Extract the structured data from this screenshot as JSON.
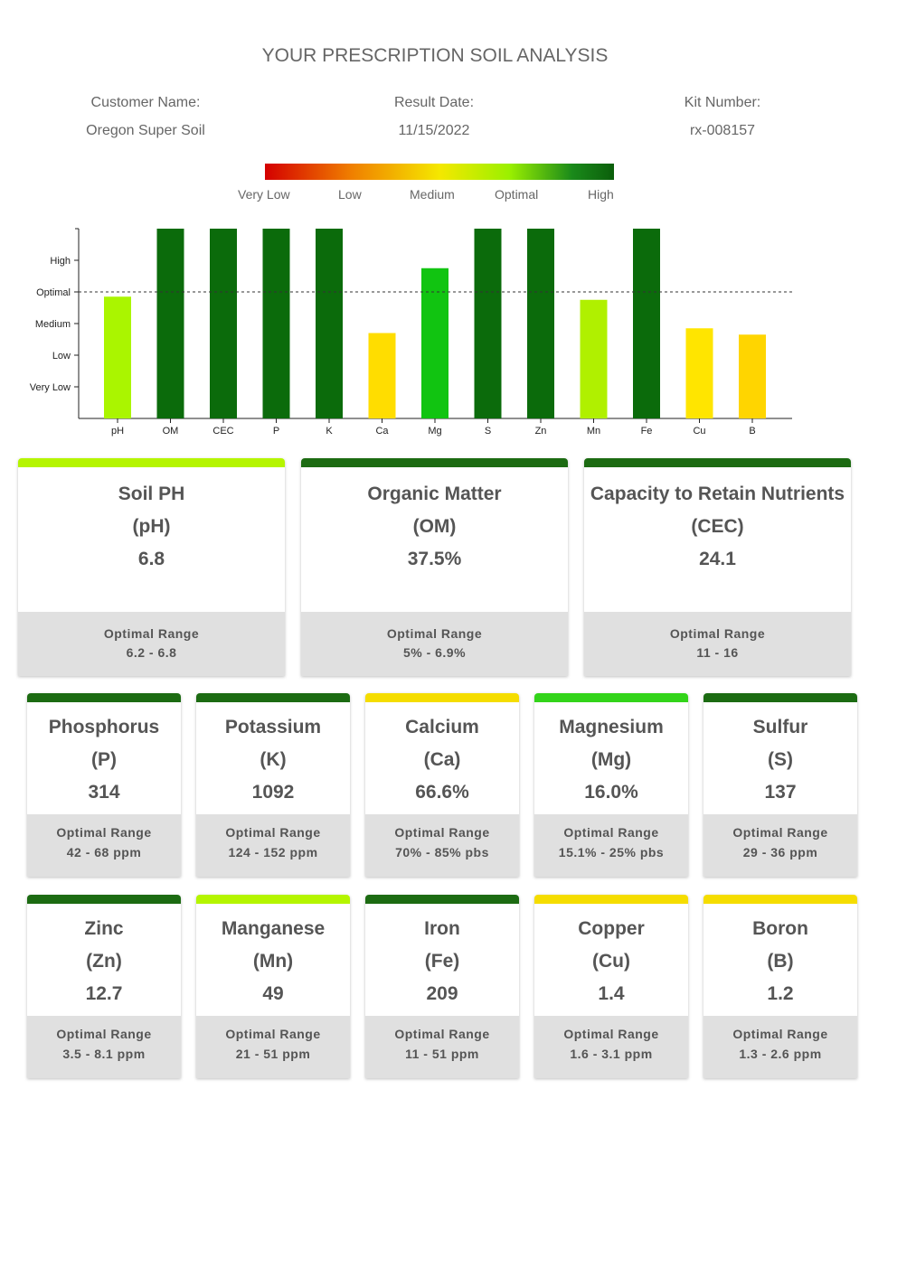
{
  "title": "YOUR PRESCRIPTION SOIL ANALYSIS",
  "meta": {
    "customer_label": "Customer Name:",
    "customer": "Oregon Super Soil",
    "date_label": "Result Date:",
    "date": "11/15/2022",
    "kit_label": "Kit Number:",
    "kit": "rx-008157"
  },
  "legend": [
    "Very Low",
    "Low",
    "Medium",
    "Optimal",
    "High"
  ],
  "chart_data": {
    "type": "bar",
    "categories": [
      "pH",
      "OM",
      "CEC",
      "P",
      "K",
      "Ca",
      "Mg",
      "S",
      "Zn",
      "Mn",
      "Fe",
      "Cu",
      "B"
    ],
    "values": [
      3.85,
      6,
      6,
      6,
      6,
      2.7,
      4.75,
      6,
      6,
      3.75,
      6,
      2.85,
      2.65
    ],
    "colors": [
      "#aaf500",
      "#0b6b0b",
      "#0b6b0b",
      "#0b6b0b",
      "#0b6b0b",
      "#ffdd00",
      "#11c411",
      "#0b6b0b",
      "#0b6b0b",
      "#b0f000",
      "#0b6b0b",
      "#ffe500",
      "#ffd500"
    ],
    "ytick_labels": [
      "Very Low",
      "Low",
      "Medium",
      "Optimal",
      "High"
    ],
    "yticks": [
      1,
      2,
      3,
      4,
      5
    ],
    "ylim": [
      0,
      6
    ],
    "reference_line": {
      "y": 4,
      "style": "dotted"
    },
    "grid": false
  },
  "cards": [
    {
      "name": "Soil PH",
      "sym": "(pH)",
      "val": "6.8",
      "range_label": "Optimal Range",
      "range": "6.2 - 6.8",
      "color": "#b5f500"
    },
    {
      "name": "Organic Matter",
      "sym": "(OM)",
      "val": "37.5%",
      "range_label": "Optimal Range",
      "range": "5% - 6.9%",
      "color": "#1c6b12"
    },
    {
      "name": "Capacity to Retain Nutrients",
      "sym": "(CEC)",
      "val": "24.1",
      "range_label": "Optimal Range",
      "range": "11 - 16",
      "color": "#1c6b12"
    },
    {
      "name": "Phosphorus",
      "sym": "(P)",
      "val": "314",
      "range_label": "Optimal Range",
      "range": "42 - 68 ppm",
      "color": "#1c6b12"
    },
    {
      "name": "Potassium",
      "sym": "(K)",
      "val": "1092",
      "range_label": "Optimal Range",
      "range": "124 - 152 ppm",
      "color": "#1c6b12"
    },
    {
      "name": "Calcium",
      "sym": "(Ca)",
      "val": "66.6%",
      "range_label": "Optimal Range",
      "range": "70% - 85% pbs",
      "color": "#f5dd00"
    },
    {
      "name": "Magnesium",
      "sym": "(Mg)",
      "val": "16.0%",
      "range_label": "Optimal Range",
      "range": "15.1% - 25% pbs",
      "color": "#33d41a"
    },
    {
      "name": "Sulfur",
      "sym": "(S)",
      "val": "137",
      "range_label": "Optimal Range",
      "range": "29 - 36 ppm",
      "color": "#1c6b12"
    },
    {
      "name": "Zinc",
      "sym": "(Zn)",
      "val": "12.7",
      "range_label": "Optimal Range",
      "range": "3.5 - 8.1 ppm",
      "color": "#1c6b12"
    },
    {
      "name": "Manganese",
      "sym": "(Mn)",
      "val": "49",
      "range_label": "Optimal Range",
      "range": "21 - 51 ppm",
      "color": "#b5f500"
    },
    {
      "name": "Iron",
      "sym": "(Fe)",
      "val": "209",
      "range_label": "Optimal Range",
      "range": "11 - 51 ppm",
      "color": "#1c6b12"
    },
    {
      "name": "Copper",
      "sym": "(Cu)",
      "val": "1.4",
      "range_label": "Optimal Range",
      "range": "1.6 - 3.1 ppm",
      "color": "#f5dd00"
    },
    {
      "name": "Boron",
      "sym": "(B)",
      "val": "1.2",
      "range_label": "Optimal Range",
      "range": "1.3 - 2.6 ppm",
      "color": "#f5dd00"
    }
  ]
}
